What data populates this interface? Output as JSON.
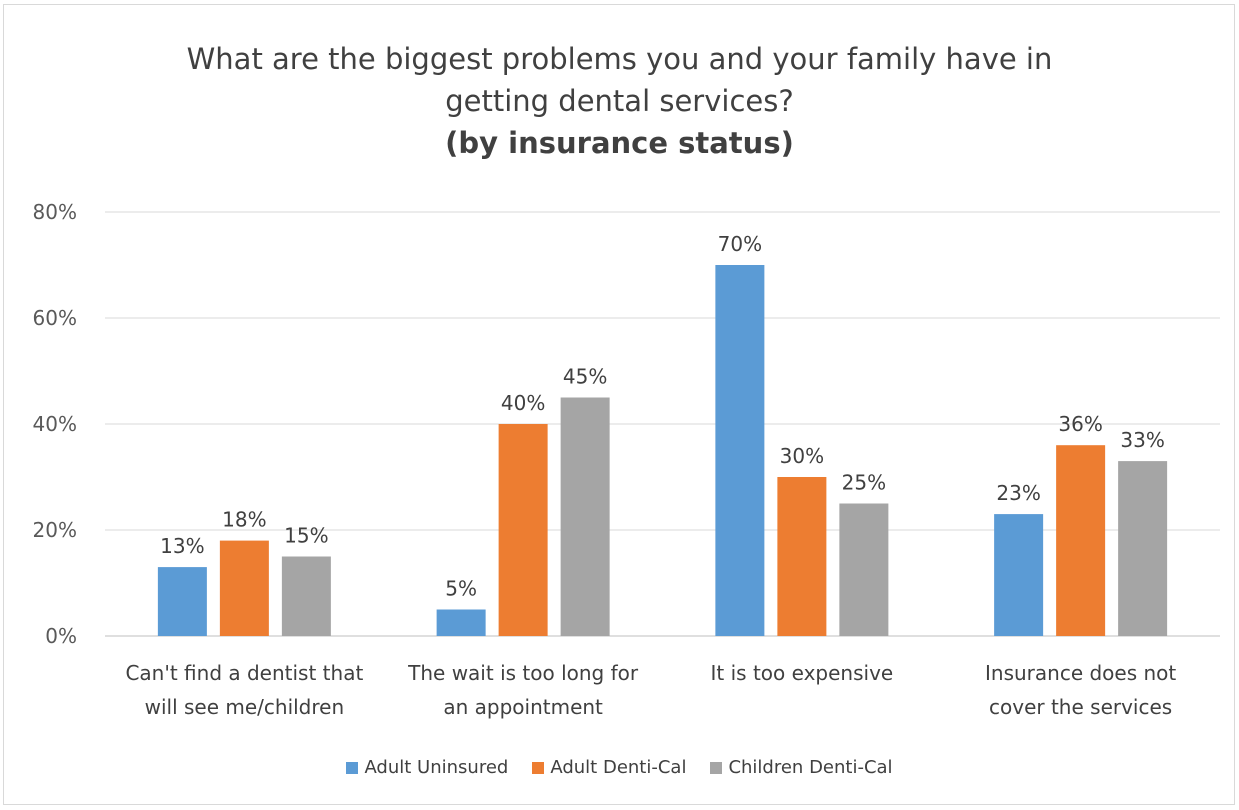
{
  "chart_data": {
    "type": "bar",
    "title_lines": [
      "What are the biggest problems you and your family have in",
      "getting dental services?"
    ],
    "subtitle": "(by insurance status)",
    "categories": [
      [
        "Can't find a dentist that",
        "will see me/children"
      ],
      [
        "The wait is too long for",
        "an appointment"
      ],
      [
        "It is too expensive"
      ],
      [
        "Insurance does not",
        "cover the services"
      ]
    ],
    "series": [
      {
        "name": "Adult Uninsured",
        "color": "#5b9bd5",
        "values": [
          13,
          5,
          70,
          23
        ]
      },
      {
        "name": "Adult Denti-Cal",
        "color": "#ed7d31",
        "values": [
          18,
          40,
          30,
          36
        ]
      },
      {
        "name": "Children Denti-Cal",
        "color": "#a5a5a5",
        "values": [
          15,
          45,
          25,
          33
        ]
      }
    ],
    "ylim": [
      0,
      80
    ],
    "yticks": [
      0,
      20,
      40,
      60,
      80
    ],
    "ytick_labels": [
      "0%",
      "20%",
      "40%",
      "60%",
      "80%"
    ],
    "value_suffix": "%",
    "grid": true,
    "legend_position": "bottom"
  }
}
